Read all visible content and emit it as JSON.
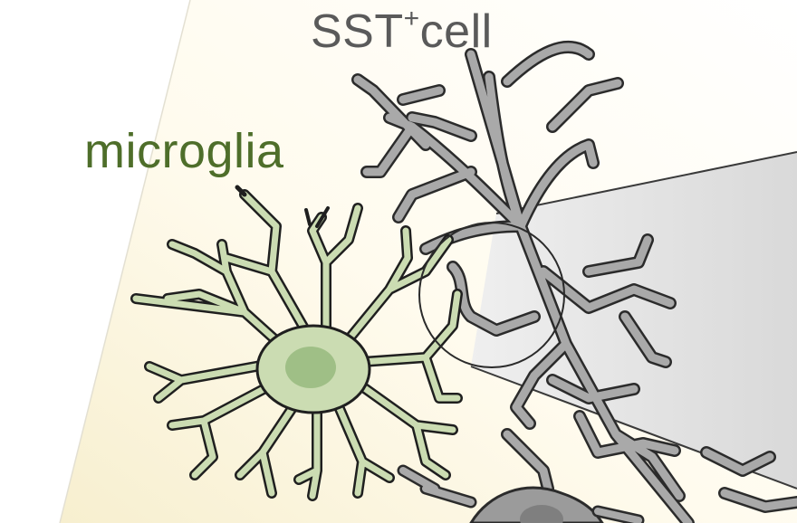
{
  "labels": {
    "sst_prefix": "SST",
    "sst_sup": "+",
    "sst_suffix": "cell",
    "microglia": "microglia"
  },
  "colors": {
    "microglia_fill": "#cbdcb2",
    "microglia_soma": "#9fbf86",
    "microglia_label": "#4e6e2a",
    "neuron_fill": "#a9a9a9",
    "neuron_outline": "#2b2b2b",
    "zoom_panel": "#e4e4e4",
    "backdrop_warm": "#faf4dc"
  }
}
